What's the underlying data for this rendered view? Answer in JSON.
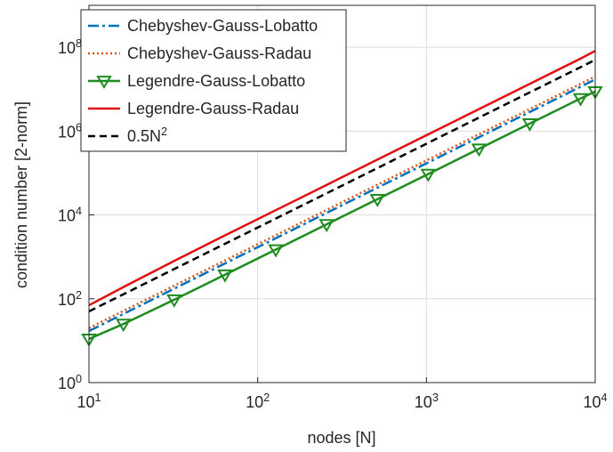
{
  "chart_data": {
    "type": "line",
    "xlabel": "nodes [N]",
    "ylabel": "condition number [2-norm]",
    "xscale": "log",
    "yscale": "log",
    "grid": true,
    "legend": "upper left",
    "x": [
      10,
      16,
      32,
      64,
      128,
      256,
      512,
      1024,
      2048,
      4096,
      8192,
      10000
    ],
    "series": [
      {
        "name": "Chebyshev-Gauss-Lobatto",
        "color": "#0072bd",
        "linestyle": "dashdot",
        "values": [
          17,
          43.5,
          174,
          696,
          2785,
          11141,
          44564,
          178258,
          713032,
          2852000,
          11410000,
          17000000
        ]
      },
      {
        "name": "Chebyshev-Gauss-Radau",
        "color": "#d95319",
        "linestyle": "dotted",
        "values": [
          20,
          51.2,
          205,
          819,
          3277,
          13107,
          52429,
          209715,
          838861,
          3355000,
          13420000,
          20000000
        ]
      },
      {
        "name": "Legendre-Gauss-Lobatto",
        "color": "#1e8c1e",
        "linestyle": "solid",
        "marker": "triangle-down",
        "values": [
          11,
          25,
          95,
          375,
          1490,
          5950,
          23700,
          94500,
          378000,
          1510000,
          6000000,
          8800000
        ]
      },
      {
        "name": "Legendre-Gauss-Radau",
        "color": "#e01010",
        "linestyle": "solid",
        "values": [
          70,
          190,
          800,
          3250,
          13000,
          52000,
          209000,
          836000,
          3350000,
          13400000,
          53700000,
          82000000
        ]
      },
      {
        "name": "0.5N^2",
        "color": "#000000",
        "linestyle": "dashed",
        "values": [
          50,
          128,
          512,
          2048,
          8192,
          32768,
          131072,
          524288,
          2097152,
          8388608,
          33554432,
          50000000
        ]
      }
    ],
    "xlim": [
      10,
      10000
    ],
    "xticks": [
      {
        "value": 10,
        "label": "10^1"
      },
      {
        "value": 100,
        "label": "10^2"
      },
      {
        "value": 1000,
        "label": "10^3"
      },
      {
        "value": 10000,
        "label": "10^4"
      }
    ],
    "ylim": [
      1,
      1000000000
    ],
    "yticks": [
      {
        "value": 1,
        "label": "10^0"
      },
      {
        "value": 100,
        "label": "10^2"
      },
      {
        "value": 10000,
        "label": "10^4"
      },
      {
        "value": 1000000,
        "label": "10^6"
      },
      {
        "value": 100000000,
        "label": "10^8"
      }
    ]
  }
}
